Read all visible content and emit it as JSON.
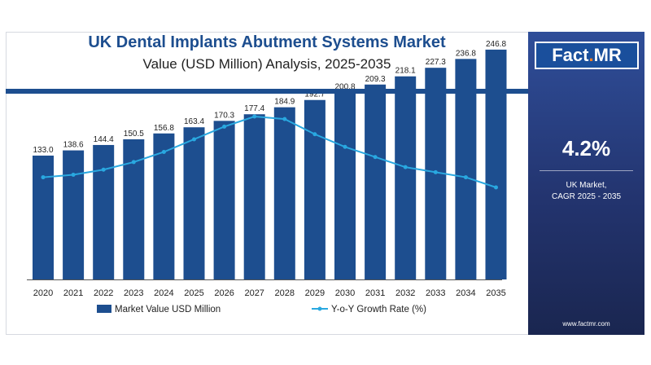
{
  "title": "UK Dental Implants Abutment Systems Market",
  "subtitle": "Value (USD Million) Analysis, 2025-2035",
  "logo": {
    "brand": "Fact",
    "dot": ".",
    "suffix": "MR"
  },
  "cagr": {
    "value": "4.2%",
    "label_line1": "UK Market,",
    "label_line2": "CAGR 2025 - 2035"
  },
  "website": "www.factmr.com",
  "colors": {
    "bar": "#1d4e8f",
    "line": "#29a8e0",
    "sidebar": "#23346f",
    "title": "#1d4e8f"
  },
  "chart_data": {
    "type": "bar",
    "categories": [
      "2020",
      "2021",
      "2022",
      "2023",
      "2024",
      "2025",
      "2026",
      "2027",
      "2028",
      "2029",
      "2030",
      "2031",
      "2032",
      "2033",
      "2034",
      "2035"
    ],
    "series": [
      {
        "name": "Market Value USD Million",
        "type": "bar",
        "values": [
          133.0,
          138.6,
          144.4,
          150.5,
          156.8,
          163.4,
          170.3,
          177.4,
          184.9,
          192.7,
          200.8,
          209.3,
          218.1,
          227.3,
          236.8,
          246.8
        ]
      },
      {
        "name": "Y-o-Y Growth Rate (%)",
        "type": "line",
        "values": [
          3.9,
          4.0,
          4.2,
          4.5,
          4.9,
          5.4,
          5.9,
          6.3,
          6.2,
          5.6,
          5.1,
          4.7,
          4.3,
          4.1,
          3.9,
          3.5
        ]
      }
    ],
    "value_labels": [
      "133.0",
      "138.6",
      "144.4",
      "150.5",
      "156.8",
      "163.4",
      "170.3",
      "177.4",
      "184.9",
      "192.7",
      "200.8",
      "209.3",
      "218.1",
      "227.3",
      "236.8",
      "246.8"
    ],
    "legend": [
      "Market Value USD Million",
      "Y-o-Y Growth Rate (%)"
    ],
    "legend_position": "bottom",
    "grid": false
  }
}
